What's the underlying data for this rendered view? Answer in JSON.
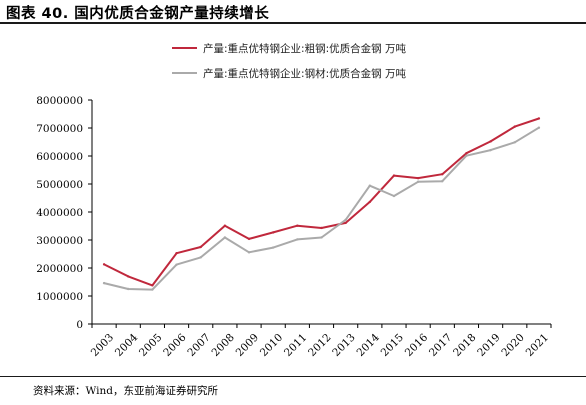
{
  "figure": {
    "title": "图表 40. 国内优质合金钢产量持续增长",
    "source": "资料来源：Wind，东亚前海证券研究所"
  },
  "chart_data": {
    "type": "line",
    "title": "",
    "xlabel": "",
    "ylabel": "",
    "x": [
      "2003",
      "2004",
      "2005",
      "2006",
      "2007",
      "2008",
      "2009",
      "2010",
      "2011",
      "2012",
      "2013",
      "2014",
      "2015",
      "2016",
      "2017",
      "2018",
      "2019",
      "2020",
      "2021"
    ],
    "ylim": [
      0,
      8000000
    ],
    "yticks": [
      0,
      1000000,
      2000000,
      3000000,
      4000000,
      5000000,
      6000000,
      7000000,
      8000000
    ],
    "grid": false,
    "legend_position": "top-right",
    "series": [
      {
        "name": "产量:重点优特钢企业:粗钢:优质合金钢 万吨",
        "color": "#c0283c",
        "values": [
          2130000,
          1700000,
          1380000,
          2530000,
          2750000,
          3510000,
          3040000,
          3270000,
          3510000,
          3430000,
          3610000,
          4360000,
          5300000,
          5210000,
          5350000,
          6100000,
          6520000,
          7050000,
          7340000
        ]
      },
      {
        "name": "产量:重点优特钢企业:钢材:优质合金钢 万吨",
        "color": "#aaaaaa",
        "values": [
          1460000,
          1250000,
          1230000,
          2120000,
          2380000,
          3090000,
          2560000,
          2730000,
          3020000,
          3090000,
          3720000,
          4940000,
          4570000,
          5080000,
          5100000,
          6010000,
          6210000,
          6490000,
          7010000
        ]
      }
    ]
  }
}
